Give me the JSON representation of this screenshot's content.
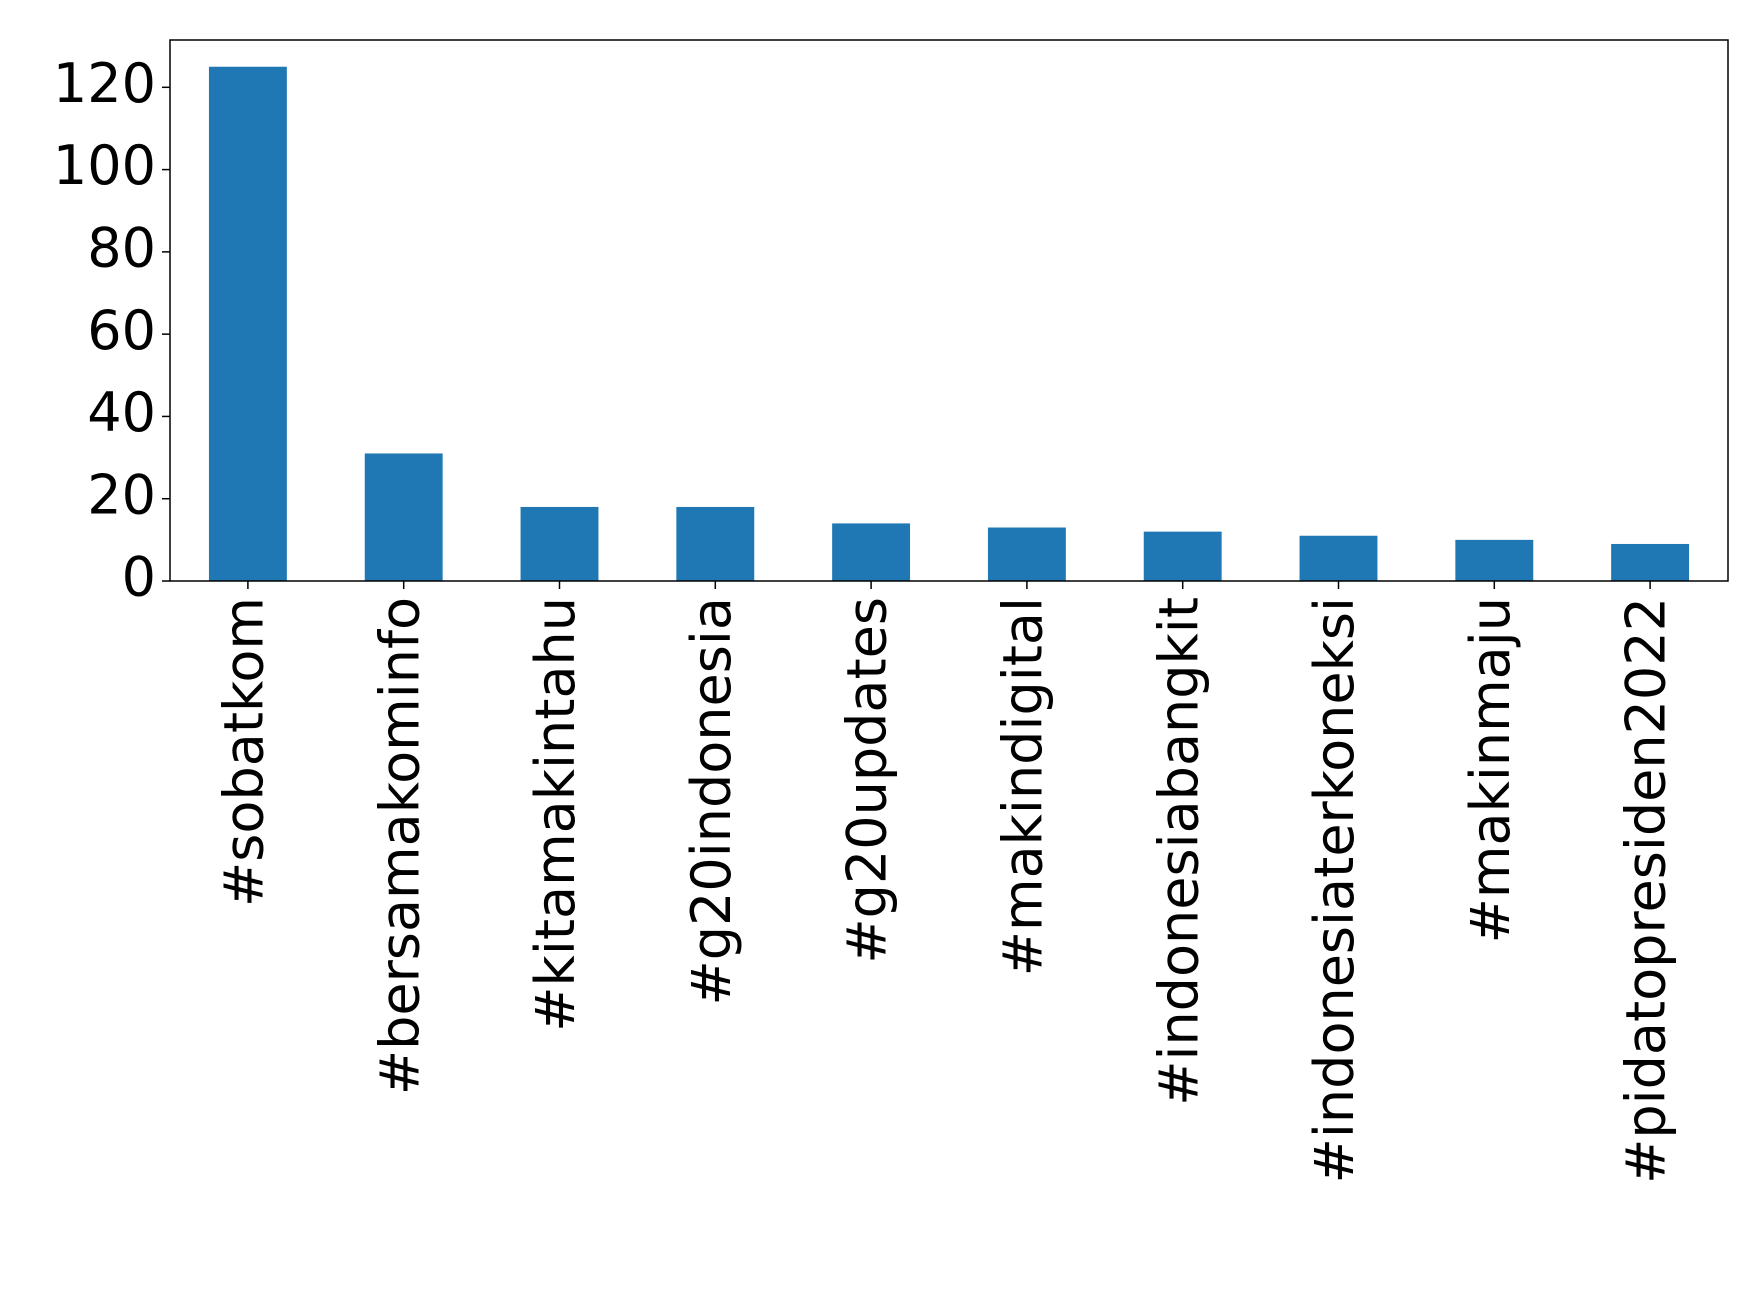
{
  "chart_data": {
    "type": "bar",
    "categories": [
      "#sobatkom",
      "#bersamakominfo",
      "#kitamakintahu",
      "#g20indonesia",
      "#g20updates",
      "#makindigital",
      "#indonesiabangkit",
      "#indonesiaterkoneksi",
      "#makinmaju",
      "#pidatopresiden2022"
    ],
    "values": [
      125,
      31,
      18,
      18,
      14,
      13,
      12,
      11,
      10,
      9
    ],
    "color": "#1f77b4",
    "ylim": [
      0,
      131.5
    ],
    "yticks": [
      0,
      20,
      40,
      60,
      80,
      100,
      120
    ],
    "grid": false
  }
}
